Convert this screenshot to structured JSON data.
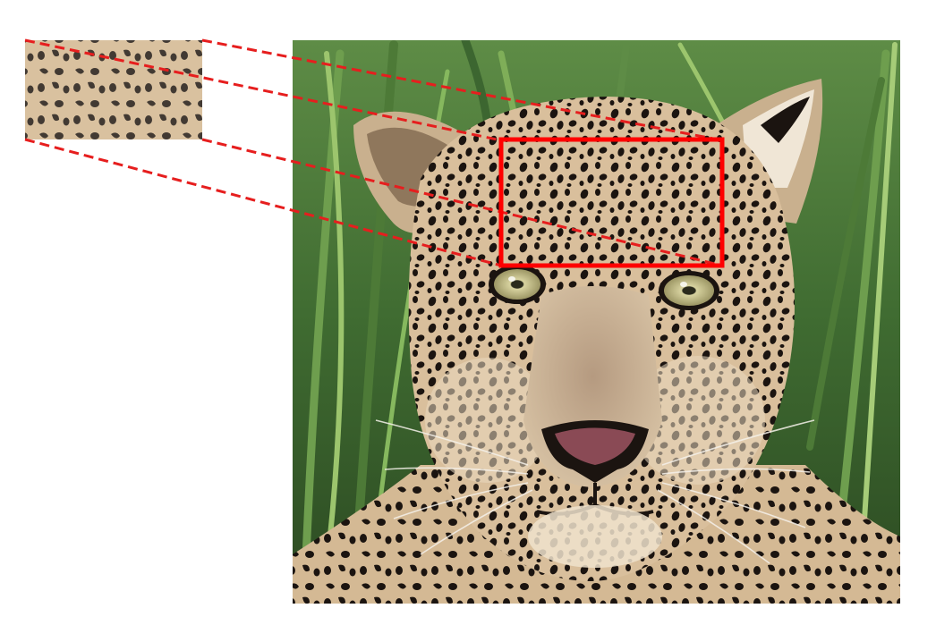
{
  "figure": {
    "subject": "leopard-face",
    "background": "#ffffff",
    "highlight_color": "#ff0000",
    "connector_color": "#e61e1e",
    "palette": {
      "grass_dark": "#2f5224",
      "grass_light": "#7fae58",
      "fur_base": "#d9bf9c",
      "fur_light": "#efe2cd",
      "spot": "#1b1410",
      "nose": "#8a4a55",
      "eye": "#c9c28a"
    }
  }
}
